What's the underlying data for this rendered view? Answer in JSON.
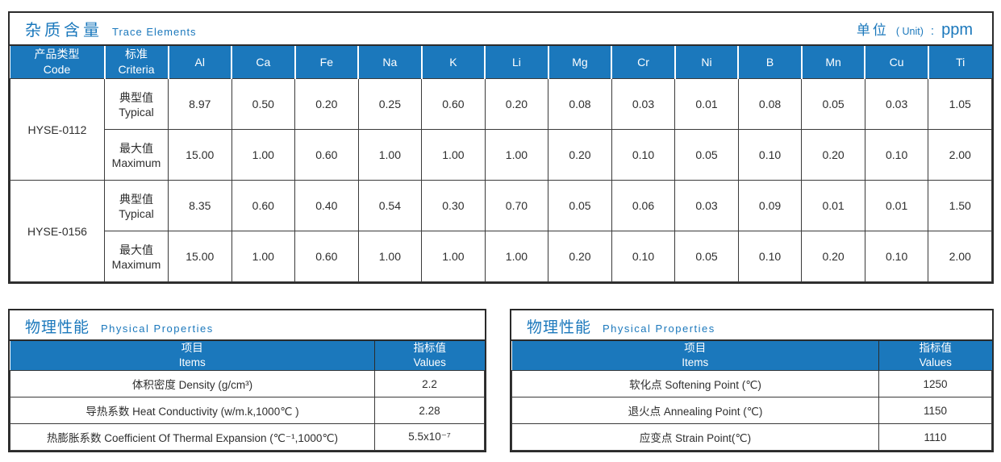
{
  "colors": {
    "accent_blue": "#1b78bc",
    "header_text": "#ffffff",
    "body_text": "#2e2e2e",
    "border_dark": "#2b2b2b"
  },
  "trace": {
    "title_zh": "杂质含量",
    "title_en": "Trace Elements",
    "unit_zh": "单位",
    "unit_en": "( Unit)",
    "unit_colon": ":",
    "unit_value": "ppm",
    "col_code_zh": "产品类型",
    "col_code_en": "Code",
    "col_criteria_zh": "标准",
    "col_criteria_en": "Criteria",
    "element_columns": [
      "Al",
      "Ca",
      "Fe",
      "Na",
      "K",
      "Li",
      "Mg",
      "Cr",
      "Ni",
      "B",
      "Mn",
      "Cu",
      "Ti"
    ],
    "products": [
      {
        "code": "HYSE-0112",
        "rows": [
          {
            "criteria_zh": "典型值",
            "criteria_en": "Typical",
            "values": [
              "8.97",
              "0.50",
              "0.20",
              "0.25",
              "0.60",
              "0.20",
              "0.08",
              "0.03",
              "0.01",
              "0.08",
              "0.05",
              "0.03",
              "1.05"
            ]
          },
          {
            "criteria_zh": "最大值",
            "criteria_en": "Maximum",
            "values": [
              "15.00",
              "1.00",
              "0.60",
              "1.00",
              "1.00",
              "1.00",
              "0.20",
              "0.10",
              "0.05",
              "0.10",
              "0.20",
              "0.10",
              "2.00"
            ]
          }
        ]
      },
      {
        "code": "HYSE-0156",
        "rows": [
          {
            "criteria_zh": "典型值",
            "criteria_en": "Typical",
            "values": [
              "8.35",
              "0.60",
              "0.40",
              "0.54",
              "0.30",
              "0.70",
              "0.05",
              "0.06",
              "0.03",
              "0.09",
              "0.01",
              "0.01",
              "1.50"
            ]
          },
          {
            "criteria_zh": "最大值",
            "criteria_en": "Maximum",
            "values": [
              "15.00",
              "1.00",
              "0.60",
              "1.00",
              "1.00",
              "1.00",
              "0.20",
              "0.10",
              "0.05",
              "0.10",
              "0.20",
              "0.10",
              "2.00"
            ]
          }
        ]
      }
    ]
  },
  "physical_left": {
    "title_zh": "物理性能",
    "title_en": "Physical Properties",
    "col_item_zh": "项目",
    "col_item_en": "Items",
    "col_value_zh": "指标值",
    "col_value_en": "Values",
    "rows": [
      {
        "item": "体积密度 Density (g/cm³)",
        "value": "2.2"
      },
      {
        "item": "导热系数 Heat Conductivity (w/m.k,1000℃ )",
        "value": "2.28"
      },
      {
        "item": "热膨胀系数 Coefficient Of Thermal Expansion (℃⁻¹,1000℃)",
        "value": "5.5x10⁻⁷"
      }
    ]
  },
  "physical_right": {
    "title_zh": "物理性能",
    "title_en": "Physical Properties",
    "col_item_zh": "项目",
    "col_item_en": "Items",
    "col_value_zh": "指标值",
    "col_value_en": "Values",
    "rows": [
      {
        "item": "软化点 Softening Point (℃)",
        "value": "1250"
      },
      {
        "item": "退火点 Annealing Point (℃)",
        "value": "1150"
      },
      {
        "item": "应变点 Strain Point(℃)",
        "value": "1110"
      }
    ]
  }
}
